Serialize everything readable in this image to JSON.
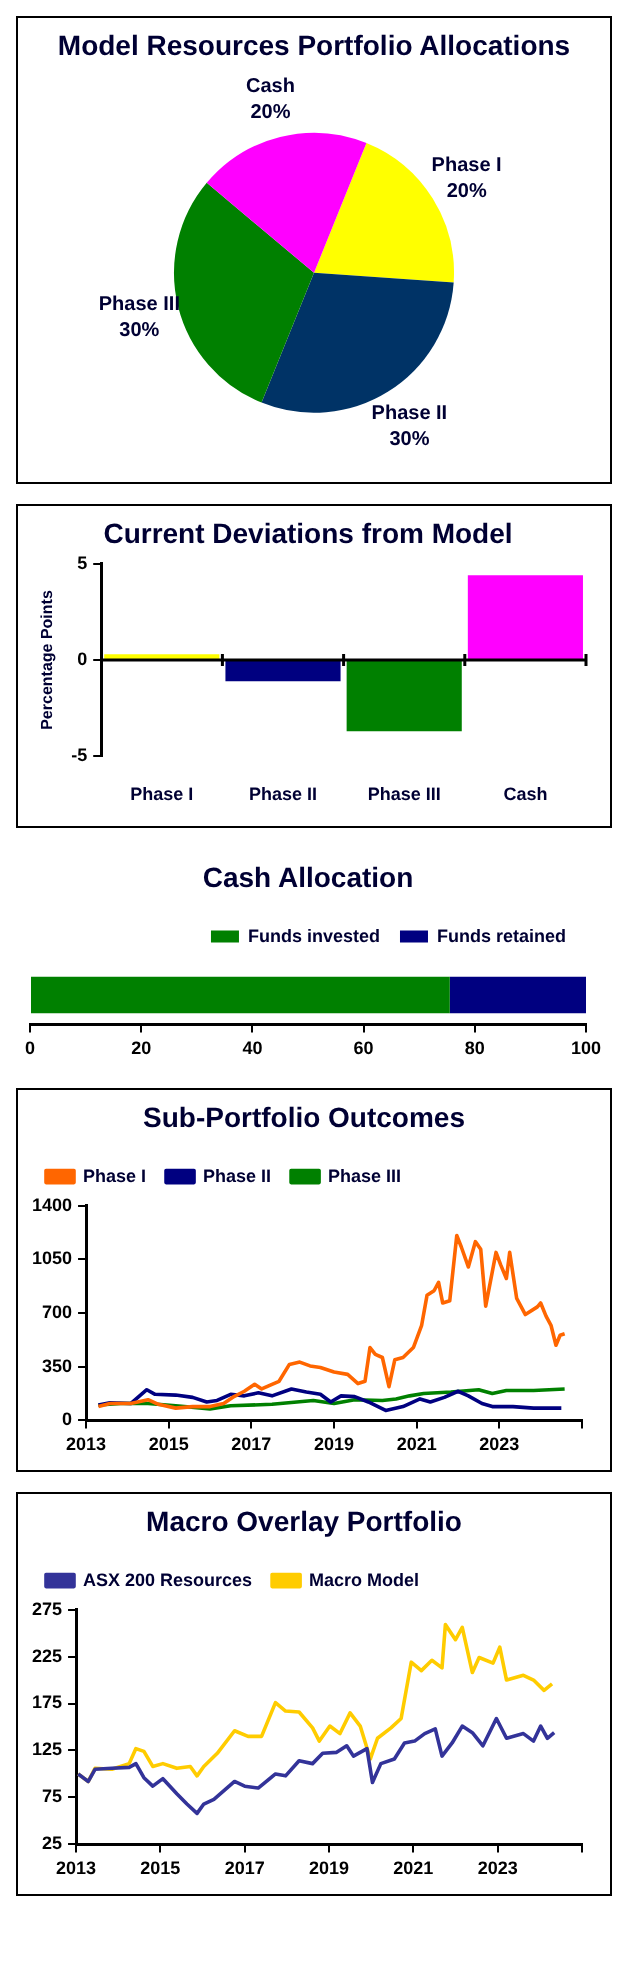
{
  "chart_data": [
    {
      "type": "pie",
      "title": "Model Resources Portfolio Allocations",
      "categories": [
        "Phase I",
        "Phase II",
        "Phase III",
        "Cash"
      ],
      "values": [
        20,
        30,
        30,
        20
      ],
      "colors": [
        "#ffff00",
        "#003366",
        "#008000",
        "#ff00ff"
      ],
      "value_labels": [
        "20%",
        "30%",
        "30%",
        "20%"
      ]
    },
    {
      "type": "bar",
      "title": "Current Deviations from Model",
      "ylabel": "Percentage Points",
      "categories": [
        "Phase I",
        "Phase II",
        "Phase III",
        "Cash"
      ],
      "values": [
        0.3,
        -1.1,
        -3.7,
        4.4
      ],
      "colors": [
        "#ffff00",
        "#000080",
        "#008000",
        "#ff00ff"
      ],
      "ylim": [
        -5,
        5
      ],
      "yticks": [
        -5,
        0,
        5
      ]
    },
    {
      "type": "bar",
      "title": "Cash Allocation",
      "orientation": "horizontal",
      "stacked": true,
      "legend": "top right",
      "categories": [
        null
      ],
      "xlim": [
        0,
        100
      ],
      "xticks": [
        0,
        20,
        40,
        60,
        80,
        100
      ],
      "series": [
        {
          "name": "Funds invested",
          "color": "#008000",
          "values": [
            75.5
          ]
        },
        {
          "name": "Funds retained",
          "color": "#000080",
          "values": [
            24.5
          ]
        }
      ]
    },
    {
      "type": "line",
      "title": "Sub-Portfolio Outcomes",
      "legend": "top left",
      "xlim": [
        2013,
        2025
      ],
      "xticks": [
        2013,
        2015,
        2017,
        2019,
        2021,
        2023,
        {
          "value": 2025,
          "label": null
        }
      ],
      "ylim": [
        0,
        1400
      ],
      "yticks": [
        0,
        350,
        700,
        1050,
        1400
      ],
      "series": [
        {
          "name": "Phase I",
          "color": "#ff6600",
          "x": [
            2013.3,
            2013.58,
            2014.08,
            2014.5,
            2014.75,
            2015.17,
            2015.58,
            2016.0,
            2016.33,
            2016.58,
            2016.83,
            2017.08,
            2017.25,
            2017.5,
            2017.67,
            2017.92,
            2018.17,
            2018.42,
            2018.67,
            2019.0,
            2019.33,
            2019.58,
            2019.75,
            2019.87,
            2020.0,
            2020.17,
            2020.33,
            2020.47,
            2020.67,
            2020.92,
            2021.12,
            2021.25,
            2021.42,
            2021.53,
            2021.63,
            2021.8,
            2021.97,
            2022.08,
            2022.25,
            2022.42,
            2022.55,
            2022.67,
            2022.92,
            2023.03,
            2023.17,
            2023.25,
            2023.42,
            2023.63,
            2023.92,
            2024.0,
            2024.13,
            2024.25,
            2024.37,
            2024.47,
            2024.58
          ],
          "values": [
            90,
            110,
            110,
            135,
            105,
            80,
            90,
            90,
            110,
            155,
            190,
            235,
            205,
            235,
            255,
            365,
            380,
            355,
            345,
            315,
            300,
            240,
            255,
            475,
            430,
            410,
            220,
            395,
            410,
            475,
            620,
            815,
            845,
            900,
            765,
            780,
            1205,
            1130,
            1000,
            1165,
            1115,
            745,
            1095,
            1015,
            925,
            1095,
            795,
            690,
            740,
            765,
            680,
            620,
            490,
            555,
            565
          ]
        },
        {
          "name": "Phase II",
          "color": "#000080",
          "x": [
            2013.3,
            2013.58,
            2014.08,
            2014.47,
            2014.67,
            2015.17,
            2015.58,
            2015.92,
            2016.17,
            2016.5,
            2016.83,
            2017.17,
            2017.5,
            2017.97,
            2018.33,
            2018.67,
            2018.92,
            2019.17,
            2019.5,
            2019.83,
            2020.25,
            2020.67,
            2021.08,
            2021.33,
            2021.67,
            2022.0,
            2022.25,
            2022.58,
            2022.83,
            2023.33,
            2023.83,
            2024.5
          ],
          "values": [
            100,
            115,
            110,
            200,
            170,
            165,
            150,
            120,
            130,
            170,
            160,
            180,
            160,
            205,
            185,
            170,
            120,
            160,
            155,
            120,
            65,
            90,
            140,
            120,
            150,
            190,
            160,
            110,
            90,
            90,
            80,
            80
          ]
        },
        {
          "name": "Phase III",
          "color": "#008000",
          "x": [
            2013.3,
            2013.83,
            2014.5,
            2015.17,
            2016.0,
            2016.5,
            2017.5,
            2018.5,
            2019.0,
            2019.5,
            2020.17,
            2020.5,
            2020.83,
            2021.17,
            2021.83,
            2022.5,
            2022.83,
            2023.17,
            2023.83,
            2024.58
          ],
          "values": [
            100,
            110,
            110,
            95,
            75,
            95,
            105,
            130,
            110,
            135,
            130,
            140,
            160,
            175,
            185,
            200,
            175,
            195,
            195,
            205
          ]
        }
      ]
    },
    {
      "type": "line",
      "title": "Macro Overlay Portfolio",
      "legend": "top left",
      "xlim": [
        2013,
        2025
      ],
      "xticks": [
        2013,
        2015,
        2017,
        2019,
        2021,
        2023,
        {
          "value": 2025,
          "label": null
        }
      ],
      "ylim": [
        25,
        275
      ],
      "yticks": [
        25,
        75,
        125,
        175,
        225,
        275
      ],
      "series": [
        {
          "name": "ASX 200 Resources",
          "color": "#333399",
          "x": [
            2013.05,
            2013.29,
            2013.45,
            2013.85,
            2014.26,
            2014.42,
            2014.61,
            2014.82,
            2015.06,
            2015.39,
            2015.63,
            2015.87,
            2016.03,
            2016.27,
            2016.76,
            2017.0,
            2017.32,
            2017.73,
            2017.97,
            2018.29,
            2018.61,
            2018.85,
            2019.18,
            2019.42,
            2019.58,
            2019.9,
            2020.03,
            2020.23,
            2020.55,
            2020.79,
            2021.03,
            2021.27,
            2021.52,
            2021.68,
            2021.92,
            2022.16,
            2022.4,
            2022.65,
            2022.97,
            2023.21,
            2023.61,
            2023.85,
            2024.02,
            2024.18,
            2024.34
          ],
          "values": [
            100,
            92,
            105,
            106,
            107,
            111,
            96,
            87,
            95,
            79,
            68,
            58,
            68,
            73,
            92,
            87,
            85,
            100,
            98,
            114,
            111,
            122,
            123,
            130,
            119,
            127,
            91,
            111,
            116,
            133,
            135,
            143,
            148,
            119,
            133,
            151,
            144,
            130,
            159,
            138,
            143,
            135,
            151,
            138,
            144
          ]
        },
        {
          "name": "Macro Model",
          "color": "#ffcc00",
          "x": [
            2013.05,
            2013.29,
            2013.45,
            2013.85,
            2014.26,
            2014.42,
            2014.61,
            2014.82,
            2015.06,
            2015.39,
            2015.71,
            2015.87,
            2016.03,
            2016.35,
            2016.76,
            2017.08,
            2017.4,
            2017.73,
            2017.97,
            2018.29,
            2018.61,
            2018.77,
            2019.02,
            2019.26,
            2019.5,
            2019.74,
            2019.98,
            2020.15,
            2020.47,
            2020.71,
            2020.95,
            2021.19,
            2021.44,
            2021.68,
            2021.76,
            2022.0,
            2022.16,
            2022.4,
            2022.56,
            2022.89,
            2023.05,
            2023.21,
            2023.61,
            2023.85,
            2024.1,
            2024.29
          ],
          "values": [
            100,
            92,
            106,
            105,
            111,
            127,
            124,
            108,
            111,
            106,
            108,
            98,
            108,
            122,
            146,
            140,
            140,
            176,
            167,
            166,
            149,
            135,
            151,
            143,
            165,
            151,
            116,
            138,
            149,
            159,
            219,
            210,
            221,
            213,
            259,
            243,
            256,
            208,
            224,
            218,
            235,
            200,
            205,
            200,
            189,
            196
          ]
        }
      ]
    }
  ]
}
